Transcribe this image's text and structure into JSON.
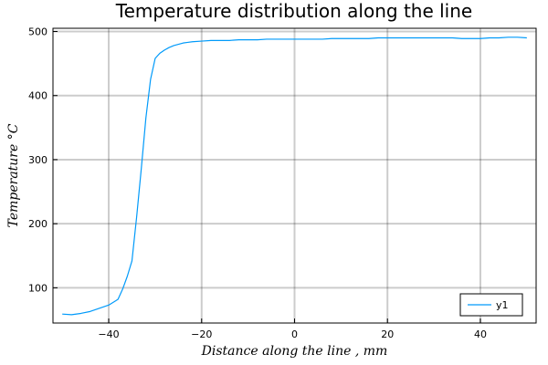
{
  "chart_data": {
    "type": "line",
    "title": "Temperature distribution along the line",
    "xlabel": "Distance along the line ,  mm",
    "ylabel": "Temperature °C",
    "xlim": [
      -52,
      52
    ],
    "ylim": [
      45,
      505
    ],
    "xticks": [
      -40,
      -20,
      0,
      20,
      40
    ],
    "xtick_labels": [
      "−40",
      "−20",
      "0",
      "20",
      "40"
    ],
    "yticks": [
      100,
      200,
      300,
      400,
      500
    ],
    "ytick_labels": [
      "100",
      "200",
      "300",
      "400",
      "500"
    ],
    "grid": true,
    "legend_position": "bottom-right",
    "series": [
      {
        "name": "y1",
        "color": "#009AFA",
        "x": [
          -50,
          -48,
          -46,
          -44,
          -42,
          -40,
          -38,
          -37,
          -36,
          -35,
          -34,
          -33,
          -32,
          -31,
          -30,
          -29,
          -28,
          -27,
          -26,
          -25,
          -24,
          -23,
          -22,
          -20,
          -18,
          -16,
          -14,
          -12,
          -10,
          -8,
          -6,
          -4,
          -2,
          0,
          2,
          4,
          6,
          8,
          10,
          12,
          14,
          16,
          18,
          20,
          22,
          24,
          26,
          28,
          30,
          32,
          34,
          36,
          38,
          40,
          42,
          44,
          46,
          48,
          50
        ],
        "y": [
          59,
          58,
          60,
          63,
          68,
          73,
          82,
          98,
          118,
          142,
          210,
          285,
          365,
          425,
          458,
          466,
          471,
          475,
          478,
          480,
          482,
          483,
          484,
          485,
          486,
          486,
          486,
          487,
          487,
          487,
          488,
          488,
          488,
          488,
          488,
          488,
          488,
          489,
          489,
          489,
          489,
          489,
          490,
          490,
          490,
          490,
          490,
          490,
          490,
          490,
          490,
          489,
          489,
          489,
          490,
          490,
          491,
          491,
          490
        ]
      }
    ]
  }
}
